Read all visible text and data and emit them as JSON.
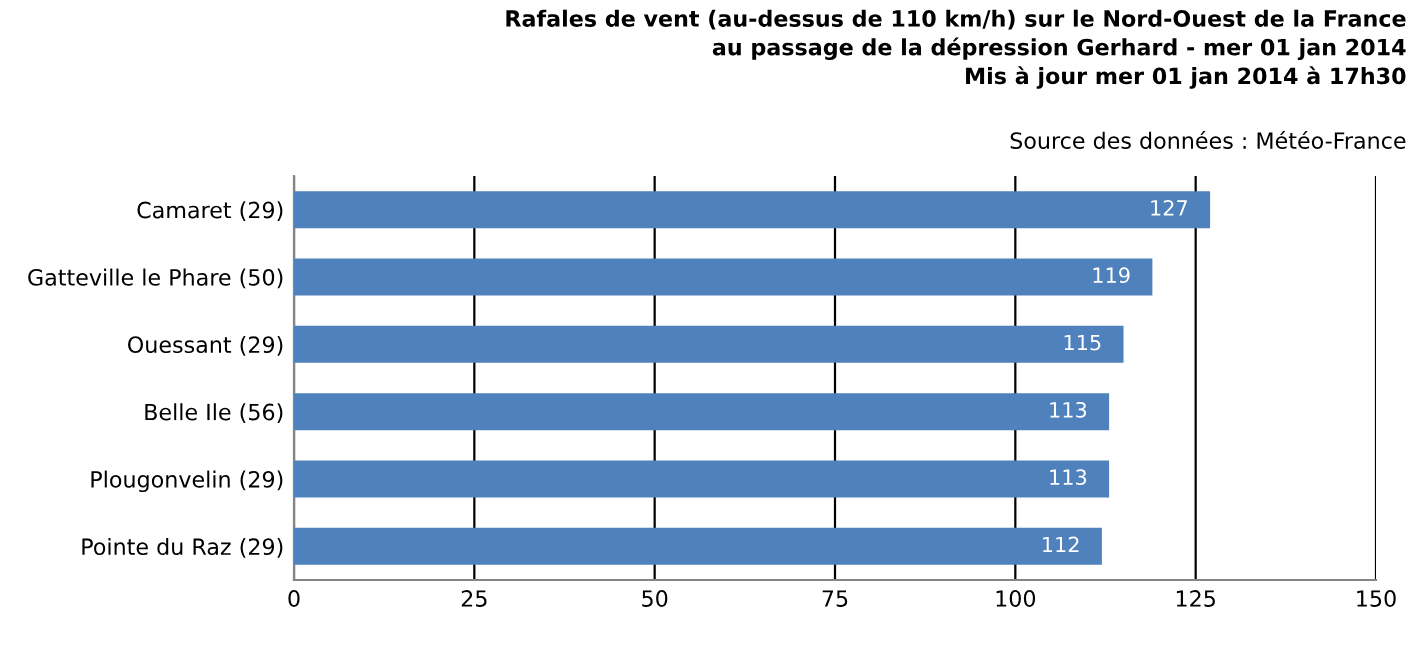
{
  "chart_data": {
    "type": "bar",
    "orientation": "horizontal",
    "title": "Rafales de vent (au-dessus de 110 km/h) sur le Nord-Ouest de la France\nau passage de la dépression Gerhard - mer 01 jan 2014\nMis à jour mer 01 jan 2014 à 17h30",
    "annotations": [
      "Source des données : Météo-France"
    ],
    "categories": [
      "Camaret (29)",
      "Gatteville le Phare (50)",
      "Ouessant (29)",
      "Belle Ile (56)",
      "Plougonvelin (29)",
      "Pointe du Raz (29)"
    ],
    "values": [
      127,
      119,
      115,
      113,
      113,
      112
    ],
    "color": "#4f81bd",
    "data_labels": true,
    "xlim": [
      0,
      150
    ],
    "xticks": [
      0,
      25,
      50,
      75,
      100,
      125,
      150
    ],
    "grid": "x",
    "legend": false
  }
}
